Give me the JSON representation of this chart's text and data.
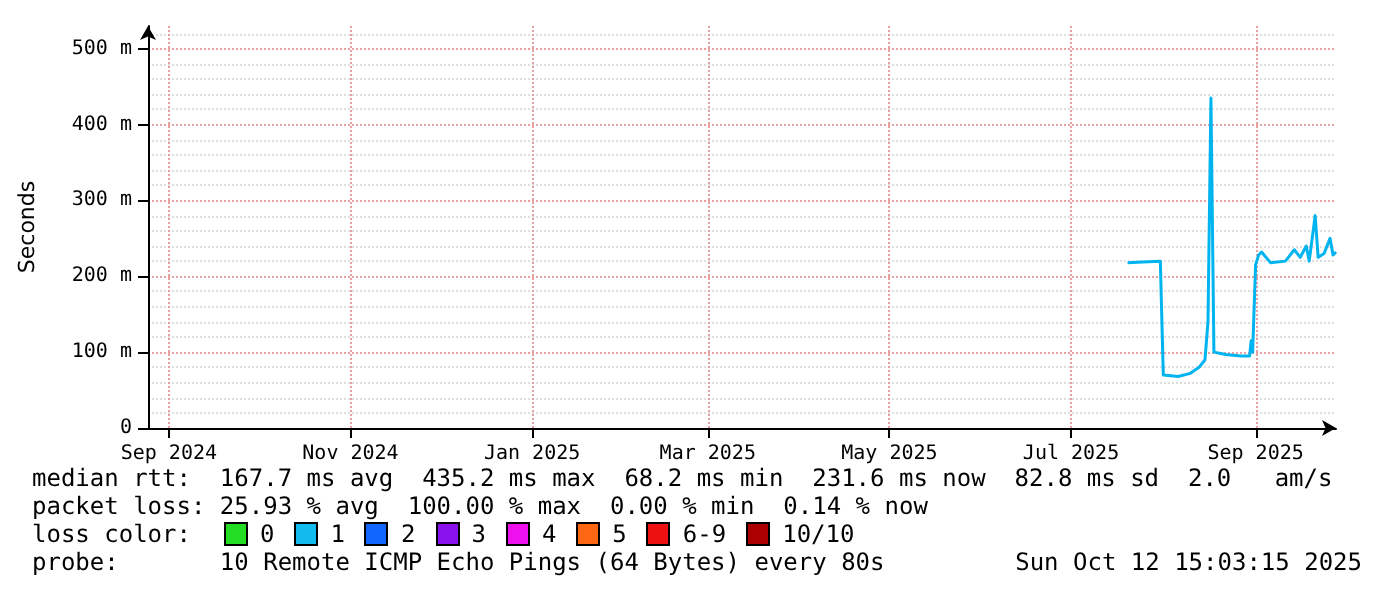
{
  "chart_data": {
    "type": "line",
    "ylabel": "Seconds",
    "x": [
      "2025-08-03",
      "2025-08-08",
      "2025-08-14",
      "2025-08-15",
      "2025-08-20",
      "2025-08-24",
      "2025-08-27",
      "2025-08-29",
      "2025-08-30",
      "2025-08-31",
      "2025-09-01",
      "2025-09-05",
      "2025-09-10",
      "2025-09-13",
      "2025-09-13T12:00",
      "2025-09-14",
      "2025-09-15",
      "2025-09-16",
      "2025-09-17",
      "2025-09-20",
      "2025-09-25",
      "2025-09-28",
      "2025-09-30",
      "2025-10-02",
      "2025-10-03",
      "2025-10-05",
      "2025-10-06",
      "2025-10-08",
      "2025-10-10",
      "2025-10-11",
      "2025-10-12"
    ],
    "series": [
      {
        "color": "#00b4f0",
        "values": [
          218,
          219,
          220,
          70,
          68,
          72,
          80,
          90,
          140,
          435,
          100,
          97,
          95,
          95,
          115,
          100,
          215,
          228,
          232,
          218,
          220,
          235,
          225,
          240,
          220,
          280,
          225,
          230,
          250,
          228,
          232
        ]
      }
    ],
    "xlim": [
      "2024-09-08",
      "2025-10-12"
    ],
    "xticks": [
      {
        "value": "2024-09-15",
        "label": "Sep 2024"
      },
      {
        "value": "2024-11-15",
        "label": "Nov 2024"
      },
      {
        "value": "2025-01-15",
        "label": "Jan 2025"
      },
      {
        "value": "2025-03-15",
        "label": "Mar 2025"
      },
      {
        "value": "2025-05-15",
        "label": "May 2025"
      },
      {
        "value": "2025-07-15",
        "label": "Jul 2025"
      },
      {
        "value": "2025-09-15",
        "label": "Sep 2025"
      }
    ],
    "ylim": [
      0,
      530
    ],
    "yticks": [
      0,
      {
        "value": 100,
        "label": "100 m"
      },
      {
        "value": 200,
        "label": "200 m"
      },
      {
        "value": 300,
        "label": "300 m"
      },
      {
        "value": 400,
        "label": "400 m"
      },
      {
        "value": 500,
        "label": "500 m"
      }
    ],
    "grid": true,
    "marker": "none",
    "line_style": "solid",
    "annotations": [
      "median rtt:  167.7 ms avg  435.2 ms max  68.2 ms min  231.6 ms now  82.8 ms sd  2.0   am/s",
      "packet loss: 25.93 % avg  100.00 % max  0.00 % min  0.14 % now",
      "loss color:",
      "0",
      "1",
      "2",
      "3",
      "4",
      "5",
      "6-9",
      "10/10",
      "probe:       10 Remote ICMP Echo Pings (64 Bytes) every 80s",
      "Sun Oct 12 15:03:15 2025"
    ]
  }
}
